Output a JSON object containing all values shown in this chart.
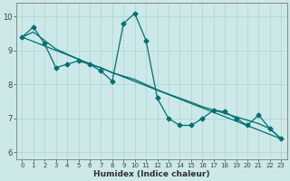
{
  "xlabel": "Humidex (Indice chaleur)",
  "xlim": [
    -0.5,
    23.5
  ],
  "ylim": [
    5.8,
    10.4
  ],
  "xticks": [
    0,
    1,
    2,
    3,
    4,
    5,
    6,
    7,
    8,
    9,
    10,
    11,
    12,
    13,
    14,
    15,
    16,
    17,
    18,
    19,
    20,
    21,
    22,
    23
  ],
  "yticks": [
    6,
    7,
    8,
    9,
    10
  ],
  "background_color": "#cce8e8",
  "grid_color": "#aad4d4",
  "line_color": "#007070",
  "series1_x": [
    0,
    1,
    2,
    3,
    4,
    5,
    6,
    7,
    8,
    9,
    10,
    11,
    12,
    13,
    14,
    15,
    16,
    17,
    18,
    19,
    20,
    21,
    22,
    23
  ],
  "series1_y": [
    9.4,
    9.7,
    9.2,
    8.5,
    8.6,
    8.7,
    8.6,
    8.4,
    8.1,
    9.8,
    10.1,
    9.3,
    7.6,
    7.0,
    6.8,
    6.8,
    7.0,
    7.25,
    7.2,
    7.0,
    6.8,
    7.1,
    6.7,
    6.4
  ],
  "smooth_x": [
    0,
    1,
    2,
    3,
    4,
    5,
    6,
    7,
    8,
    9,
    10,
    11,
    12,
    13,
    14,
    15,
    16,
    17,
    18,
    19,
    20,
    21,
    22,
    23
  ],
  "smooth_y": [
    9.4,
    9.55,
    9.3,
    9.05,
    8.9,
    8.75,
    8.6,
    8.5,
    8.35,
    8.25,
    8.15,
    8.0,
    7.85,
    7.72,
    7.6,
    7.48,
    7.35,
    7.25,
    7.15,
    7.05,
    6.95,
    6.85,
    6.7,
    6.4
  ],
  "line2_x": [
    0,
    23
  ],
  "line2_y": [
    9.4,
    6.4
  ],
  "marker_size": 2.5,
  "linewidth": 0.9
}
